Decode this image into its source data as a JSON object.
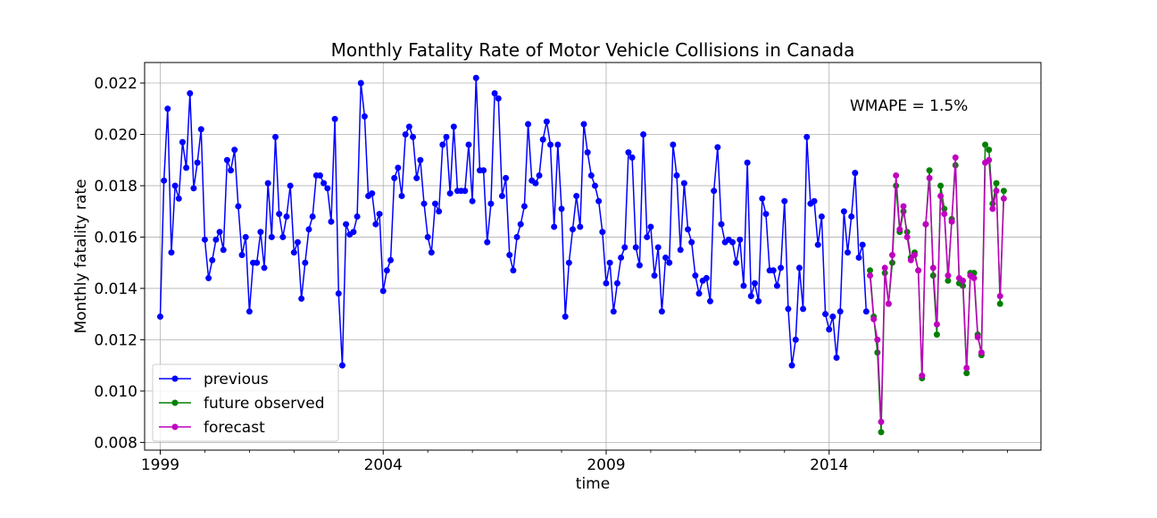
{
  "chart_data": {
    "type": "line",
    "title": "Monthly Fatality Rate of Motor Vehicle Collisions in Canada",
    "xlabel": "time",
    "ylabel": "Monthly fatality rate",
    "annotation": "WMAPE = 1.5%",
    "grid": true,
    "legend_position": "lower-left",
    "xlim": [
      1998.65,
      2018.75
    ],
    "ylim": [
      0.0077,
      0.0228
    ],
    "x_ticks": [
      1999,
      2004,
      2009,
      2014
    ],
    "y_ticks": [
      0.008,
      0.01,
      0.012,
      0.014,
      0.016,
      0.018,
      0.02,
      0.022
    ],
    "y_tick_labels": [
      "0.008",
      "0.010",
      "0.012",
      "0.014",
      "0.016",
      "0.018",
      "0.020",
      "0.022"
    ],
    "series": [
      {
        "name": "previous",
        "color": "#0000ff",
        "start": 1999.0,
        "step": 0.08333,
        "values": [
          0.0129,
          0.0182,
          0.021,
          0.0154,
          0.018,
          0.0175,
          0.0197,
          0.0187,
          0.0216,
          0.0179,
          0.0189,
          0.0202,
          0.0159,
          0.0144,
          0.0151,
          0.0159,
          0.0162,
          0.0155,
          0.019,
          0.0186,
          0.0194,
          0.0172,
          0.0153,
          0.016,
          0.0131,
          0.015,
          0.015,
          0.0162,
          0.0148,
          0.0181,
          0.016,
          0.0199,
          0.0169,
          0.016,
          0.0168,
          0.018,
          0.0154,
          0.0158,
          0.0136,
          0.015,
          0.0163,
          0.0168,
          0.0184,
          0.0184,
          0.0181,
          0.0179,
          0.0166,
          0.0206,
          0.0138,
          0.011,
          0.0165,
          0.0161,
          0.0162,
          0.0168,
          0.022,
          0.0207,
          0.0176,
          0.0177,
          0.0165,
          0.0169,
          0.0139,
          0.0147,
          0.0151,
          0.0183,
          0.0187,
          0.0176,
          0.02,
          0.0203,
          0.0199,
          0.0183,
          0.019,
          0.0173,
          0.016,
          0.0154,
          0.0173,
          0.017,
          0.0196,
          0.0199,
          0.0177,
          0.0203,
          0.0178,
          0.0178,
          0.0178,
          0.0196,
          0.0174,
          0.0222,
          0.0186,
          0.0186,
          0.0158,
          0.0173,
          0.0216,
          0.0214,
          0.0176,
          0.0183,
          0.0153,
          0.0147,
          0.016,
          0.0165,
          0.0172,
          0.0204,
          0.0182,
          0.0181,
          0.0184,
          0.0198,
          0.0205,
          0.0196,
          0.0164,
          0.0196,
          0.0171,
          0.0129,
          0.015,
          0.0163,
          0.0176,
          0.0164,
          0.0204,
          0.0193,
          0.0184,
          0.018,
          0.0174,
          0.0162,
          0.0142,
          0.015,
          0.0131,
          0.0142,
          0.0152,
          0.0156,
          0.0193,
          0.0191,
          0.0156,
          0.0149,
          0.02,
          0.016,
          0.0164,
          0.0145,
          0.0156,
          0.0131,
          0.0152,
          0.015,
          0.0196,
          0.0184,
          0.0155,
          0.0181,
          0.0163,
          0.0158,
          0.0145,
          0.0138,
          0.0143,
          0.0144,
          0.0135,
          0.0178,
          0.0195,
          0.0165,
          0.0158,
          0.0159,
          0.0158,
          0.015,
          0.0159,
          0.0141,
          0.0189,
          0.0137,
          0.0142,
          0.0135,
          0.0175,
          0.0169,
          0.0147,
          0.0147,
          0.0141,
          0.0148,
          0.0174,
          0.0132,
          0.011,
          0.012,
          0.0148,
          0.0132,
          0.0199,
          0.0173,
          0.0174,
          0.0157,
          0.0168,
          0.013,
          0.0124,
          0.0129,
          0.0113,
          0.0131,
          0.017,
          0.0154,
          0.0168,
          0.0185,
          0.0152,
          0.0157,
          0.0131
        ]
      },
      {
        "name": "future observed",
        "color": "#008000",
        "start": 2014.9167,
        "step": 0.08333,
        "values": [
          0.0147,
          0.0129,
          0.0115,
          0.0084,
          0.0146,
          0.0134,
          0.015,
          0.018,
          0.0162,
          0.017,
          0.0162,
          0.0152,
          0.0154,
          0.0147,
          0.0105,
          0.0165,
          0.0186,
          0.0145,
          0.0122,
          0.018,
          0.0171,
          0.0143,
          0.0167,
          0.0188,
          0.0142,
          0.0141,
          0.0107,
          0.0146,
          0.0146,
          0.0122,
          0.0114,
          0.0196,
          0.0194,
          0.0173,
          0.0181,
          0.0134,
          0.0178
        ]
      },
      {
        "name": "forecast",
        "color": "#bf00bf",
        "start": 2014.9167,
        "step": 0.08333,
        "values": [
          0.0145,
          0.0128,
          0.012,
          0.0088,
          0.0148,
          0.0134,
          0.0153,
          0.0184,
          0.0163,
          0.0172,
          0.016,
          0.0151,
          0.0153,
          0.0147,
          0.0106,
          0.0165,
          0.0183,
          0.0148,
          0.0126,
          0.0176,
          0.0169,
          0.0145,
          0.0166,
          0.0191,
          0.0144,
          0.0143,
          0.0109,
          0.0145,
          0.0144,
          0.0121,
          0.0115,
          0.0189,
          0.019,
          0.0171,
          0.0178,
          0.0137,
          0.0175
        ]
      }
    ]
  }
}
